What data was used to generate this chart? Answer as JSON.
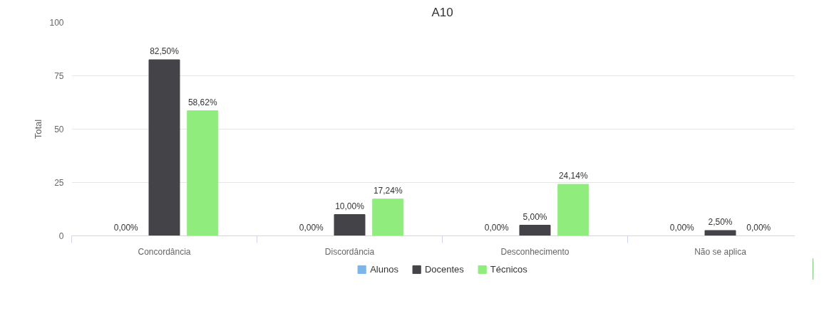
{
  "chart_data": {
    "type": "bar",
    "title": "A10",
    "ylabel": "Total",
    "categories": [
      "Concordância",
      "Discordância",
      "Desconhecimento",
      "Não se aplica"
    ],
    "series": [
      {
        "name": "Alunos",
        "color": "#7cb5ec",
        "values": [
          0,
          0,
          0,
          0
        ],
        "value_labels": [
          "0,00%",
          "0,00%",
          "0,00%",
          "0,00%"
        ]
      },
      {
        "name": "Docentes",
        "color": "#434348",
        "values": [
          82.5,
          10,
          5,
          2.5
        ],
        "value_labels": [
          "82,50%",
          "10,00%",
          "5,00%",
          "2,50%"
        ]
      },
      {
        "name": "Técnicos",
        "color": "#90ed7d",
        "values": [
          58.62,
          17.24,
          24.14,
          0
        ],
        "value_labels": [
          "58,62%",
          "17,24%",
          "24,14%",
          "0,00%"
        ]
      }
    ],
    "ylim": [
      0,
      100
    ],
    "yticks": [
      0,
      25,
      50,
      75,
      100
    ],
    "grid": "y",
    "legend": "bottom"
  }
}
